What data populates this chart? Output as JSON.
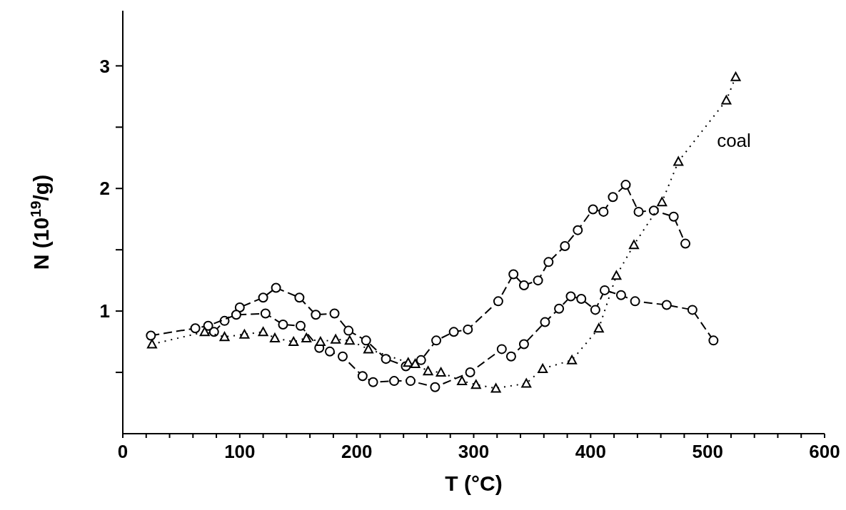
{
  "chart_data": {
    "type": "line",
    "xlabel": "T  (°C)",
    "ylabel": "N (10$^{19}$/g)",
    "xlim": [
      0,
      600
    ],
    "ylim": [
      0,
      3.45
    ],
    "xticks": [
      0,
      {
        "value": 20,
        "label": null
      },
      {
        "value": 40,
        "label": null
      },
      {
        "value": 60,
        "label": null
      },
      {
        "value": 80,
        "label": null
      },
      100,
      {
        "value": 120,
        "label": null
      },
      {
        "value": 140,
        "label": null
      },
      {
        "value": 160,
        "label": null
      },
      {
        "value": 180,
        "label": null
      },
      200,
      {
        "value": 220,
        "label": null
      },
      {
        "value": 240,
        "label": null
      },
      {
        "value": 260,
        "label": null
      },
      {
        "value": 280,
        "label": null
      },
      300,
      {
        "value": 320,
        "label": null
      },
      {
        "value": 340,
        "label": null
      },
      {
        "value": 360,
        "label": null
      },
      {
        "value": 380,
        "label": null
      },
      400,
      {
        "value": 420,
        "label": null
      },
      {
        "value": 440,
        "label": null
      },
      {
        "value": 460,
        "label": null
      },
      {
        "value": 480,
        "label": null
      },
      500,
      {
        "value": 520,
        "label": null
      },
      {
        "value": 540,
        "label": null
      },
      {
        "value": 560,
        "label": null
      },
      {
        "value": 580,
        "label": null
      },
      600
    ],
    "yticks": [
      {
        "value": 0.5,
        "label": null
      },
      1,
      {
        "value": 1.5,
        "label": null
      },
      2,
      {
        "value": 2.5,
        "label": null
      },
      3
    ],
    "series": [
      {
        "color": "#000000",
        "marker": "circle",
        "line_style": "dashed",
        "x": [
          78,
          87,
          100,
          120,
          131,
          151,
          165,
          181,
          193,
          208,
          225,
          242,
          255,
          268,
          283,
          295,
          321,
          334,
          343,
          355,
          364,
          378,
          389,
          402,
          411,
          419,
          430,
          441,
          454,
          471,
          481
        ],
        "values": [
          0.83,
          0.92,
          1.03,
          1.11,
          1.19,
          1.11,
          0.97,
          0.98,
          0.84,
          0.76,
          0.61,
          0.55,
          0.6,
          0.76,
          0.83,
          0.85,
          1.08,
          1.3,
          1.21,
          1.25,
          1.4,
          1.53,
          1.66,
          1.83,
          1.81,
          1.93,
          2.03,
          1.81,
          1.82,
          1.77,
          1.55
        ]
      },
      {
        "color": "#000000",
        "marker": "circle",
        "line_style": "dashed",
        "x": [
          24,
          62,
          73,
          97,
          122,
          137,
          152,
          168,
          177,
          188,
          205,
          214,
          232,
          246,
          267,
          297,
          324,
          332,
          343,
          361,
          373,
          383,
          392,
          404,
          412,
          426,
          438,
          465,
          487,
          505
        ],
        "values": [
          0.8,
          0.86,
          0.88,
          0.97,
          0.98,
          0.89,
          0.88,
          0.7,
          0.67,
          0.63,
          0.47,
          0.42,
          0.43,
          0.43,
          0.38,
          0.5,
          0.69,
          0.63,
          0.73,
          0.91,
          1.02,
          1.12,
          1.1,
          1.01,
          1.17,
          1.13,
          1.08,
          1.05,
          1.01,
          0.76
        ]
      },
      {
        "color": "#000000",
        "marker": "triangle",
        "line_style": "dotted",
        "x": [
          25,
          70,
          87,
          104,
          120,
          130,
          146,
          157,
          169,
          182,
          194,
          210,
          244,
          250,
          261,
          272,
          290,
          302,
          319,
          345,
          359,
          384,
          407,
          422,
          437,
          461,
          475,
          516,
          524
        ],
        "values": [
          0.73,
          0.83,
          0.79,
          0.81,
          0.83,
          0.78,
          0.75,
          0.78,
          0.75,
          0.77,
          0.76,
          0.69,
          0.58,
          0.57,
          0.51,
          0.5,
          0.43,
          0.4,
          0.37,
          0.41,
          0.53,
          0.6,
          0.86,
          1.29,
          1.54,
          1.89,
          2.22,
          2.72,
          2.91
        ]
      }
    ],
    "annotations": [
      "coal"
    ]
  }
}
